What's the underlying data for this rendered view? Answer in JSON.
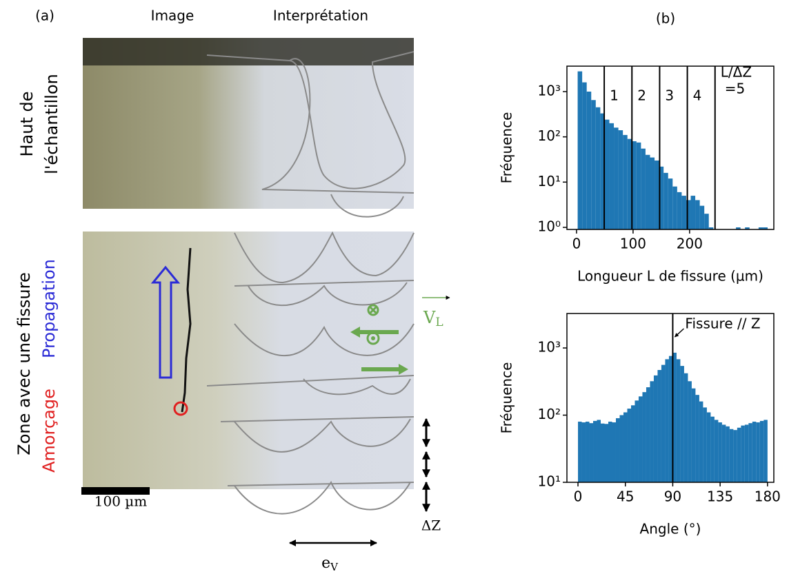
{
  "panel_a": {
    "label": "(a)",
    "col_image": "Image",
    "col_interp": "Interprétation",
    "top_label": [
      "Haut de",
      "l'échantillon"
    ],
    "zone_label": "Zone avec une fissure",
    "initiation": "Amorçage",
    "propagation": "Propagation",
    "scale_bar": "100 µm",
    "dz": "ΔZ",
    "ev": {
      "base": "e",
      "sub": "V"
    },
    "vl": {
      "base": "V",
      "sub": "L"
    }
  },
  "panel_b": {
    "label": "(b)"
  },
  "chart_data": [
    {
      "type": "histogram",
      "ylabel": "Fréquence",
      "xlabel": "Longueur L de fissure (µm)",
      "color": "#1f77b4",
      "log_y": true,
      "bins": [
        2,
        10,
        18,
        26,
        34,
        42,
        50,
        58,
        66,
        74,
        82,
        90,
        98,
        106,
        114,
        122,
        130,
        138,
        146,
        154,
        162,
        170,
        178,
        186,
        194,
        202,
        210,
        218,
        226,
        234,
        242,
        250,
        258,
        266,
        274,
        282,
        290,
        298,
        306,
        314,
        322,
        330,
        338
      ],
      "values": [
        2800,
        1600,
        1000,
        650,
        450,
        330,
        240,
        200,
        160,
        140,
        110,
        90,
        80,
        75,
        55,
        40,
        35,
        30,
        22,
        16,
        12,
        8,
        6,
        5,
        4,
        5,
        4,
        3,
        2,
        1,
        0,
        0,
        0,
        0,
        0,
        1,
        0,
        1,
        0,
        0,
        1,
        1
      ],
      "xlim": [
        -17,
        349
      ],
      "xticks": [
        0,
        100,
        200
      ],
      "ylim": [
        0.9,
        3650
      ],
      "yticks": [
        {
          "value": 1,
          "label": "10⁰"
        },
        {
          "value": 10,
          "label": "10¹"
        },
        {
          "value": 100,
          "label": "10²"
        },
        {
          "value": 1000,
          "label": "10³"
        }
      ],
      "vlines": [
        {
          "x": 49,
          "lines": [
            "1"
          ]
        },
        {
          "x": 98,
          "lines": [
            "2"
          ]
        },
        {
          "x": 147,
          "lines": [
            "3"
          ]
        },
        {
          "x": 196,
          "lines": [
            "4"
          ]
        },
        {
          "x": 245,
          "lines": [
            "L/ΔZ",
            "=5"
          ]
        }
      ]
    },
    {
      "type": "histogram",
      "ylabel": "Fréquence",
      "xlabel": "Angle (°)",
      "color": "#1f77b4",
      "log_y": true,
      "bins": [
        0,
        3.6,
        7.2,
        10.8,
        14.4,
        18,
        21.6,
        25.2,
        28.8,
        32.4,
        36,
        39.6,
        43.2,
        46.8,
        50.4,
        54,
        57.6,
        61.2,
        64.8,
        68.4,
        72,
        75.6,
        79.2,
        82.8,
        86.4,
        90,
        93.6,
        97.2,
        100.8,
        104.4,
        108,
        111.6,
        115.2,
        118.8,
        122.4,
        126,
        129.6,
        133.2,
        136.8,
        140.4,
        144,
        147.6,
        151.2,
        154.8,
        158.4,
        162,
        165.6,
        169.2,
        172.8,
        176.4,
        180
      ],
      "values": [
        80,
        78,
        80,
        76,
        82,
        85,
        75,
        74,
        80,
        78,
        90,
        100,
        110,
        125,
        140,
        165,
        190,
        220,
        260,
        320,
        390,
        470,
        560,
        680,
        760,
        850,
        680,
        540,
        420,
        320,
        250,
        200,
        160,
        130,
        110,
        95,
        85,
        78,
        72,
        68,
        62,
        60,
        65,
        70,
        72,
        76,
        80,
        78,
        82,
        85
      ],
      "xlim": [
        -10.5,
        186
      ],
      "xticks": [
        0,
        45,
        90,
        135,
        180
      ],
      "ylim": [
        10,
        3260
      ],
      "yticks": [
        {
          "value": 10,
          "label": "10¹"
        },
        {
          "value": 100,
          "label": "10²"
        },
        {
          "value": 1000,
          "label": "10³"
        }
      ],
      "vlines": [
        {
          "x": 90,
          "lines": [
            "Fissure // Z"
          ]
        }
      ]
    }
  ]
}
